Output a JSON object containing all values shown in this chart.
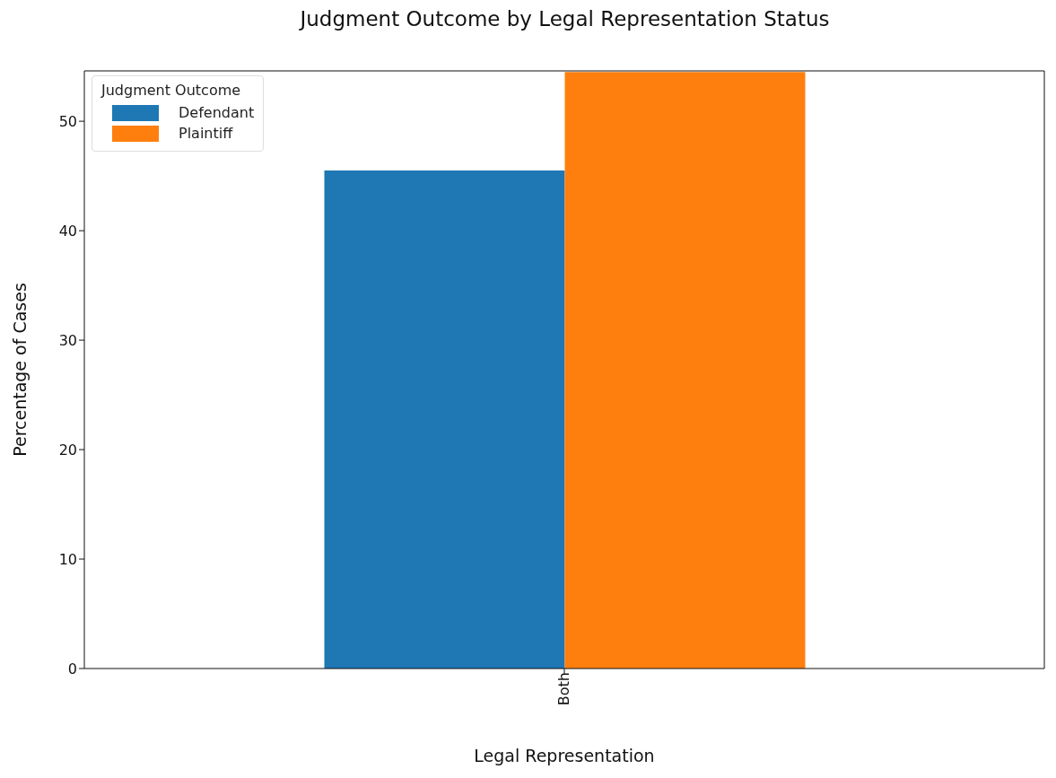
{
  "chart_data": {
    "type": "bar",
    "title": "Judgment Outcome by Legal Representation Status",
    "xlabel": "Legal Representation",
    "ylabel": "Percentage of Cases",
    "legend_title": "Judgment Outcome",
    "categories": [
      "Both"
    ],
    "series": [
      {
        "name": "Defendant",
        "color": "#1f77b4",
        "values": [
          45.5
        ]
      },
      {
        "name": "Plaintiff",
        "color": "#ff7f0e",
        "values": [
          54.5
        ]
      }
    ],
    "ylim": [
      0,
      54.6
    ],
    "yticks": [
      0,
      10,
      20,
      30,
      40,
      50
    ],
    "legend": "top left"
  }
}
